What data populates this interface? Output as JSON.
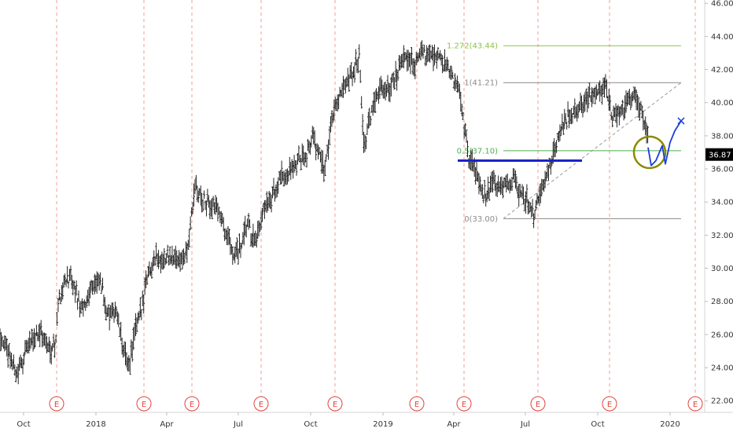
{
  "chart_data": {
    "type": "ohlc",
    "y_axis": {
      "ticks": [
        "22.00",
        "24.00",
        "26.00",
        "28.00",
        "30.00",
        "32.00",
        "34.00",
        "36.00",
        "38.00",
        "40.00",
        "42.00",
        "44.00",
        "46.00"
      ],
      "tick_values": [
        22,
        24,
        26,
        28,
        30,
        32,
        34,
        36,
        38,
        40,
        42,
        44,
        46
      ],
      "range": [
        21.3,
        46.2
      ],
      "position": "right"
    },
    "x_axis": {
      "ticks": [
        "Oct",
        "2018",
        "Apr",
        "Jul",
        "Oct",
        "2019",
        "Apr",
        "Jul",
        "Oct",
        "2020"
      ],
      "tick_days": [
        30,
        122,
        212,
        303,
        395,
        487,
        577,
        668,
        760,
        852
      ],
      "range_days": [
        0,
        932
      ]
    },
    "last_price": {
      "label": "36.87",
      "value": 36.87,
      "color": "#000000"
    },
    "earnings": {
      "label": "E",
      "days": [
        72,
        183,
        244,
        332,
        426,
        530,
        590,
        684,
        775,
        884
      ]
    },
    "fibonacci": [
      {
        "label": "1.272(43.44)",
        "value": 43.44,
        "color": "#8bc34a"
      },
      {
        "label": "1(41.21)",
        "value": 41.21,
        "color": "#8a8a8a"
      },
      {
        "label": "0.5(37.10)",
        "value": 37.1,
        "color": "#4caf50"
      },
      {
        "label": "0(33.00)",
        "value": 33.0,
        "color": "#8a8a8a"
      }
    ],
    "price_path": [
      [
        0,
        26.0
      ],
      [
        10,
        25.0
      ],
      [
        22,
        23.6
      ],
      [
        35,
        25.2
      ],
      [
        50,
        26.3
      ],
      [
        62,
        25.1
      ],
      [
        70,
        25.4
      ],
      [
        75,
        28.2
      ],
      [
        85,
        29.5
      ],
      [
        95,
        28.7
      ],
      [
        105,
        27.3
      ],
      [
        115,
        28.9
      ],
      [
        128,
        29.1
      ],
      [
        138,
        27.0
      ],
      [
        148,
        27.4
      ],
      [
        156,
        25.3
      ],
      [
        163,
        24.0
      ],
      [
        172,
        26.2
      ],
      [
        180,
        27.5
      ],
      [
        186,
        29.4
      ],
      [
        195,
        30.6
      ],
      [
        210,
        30.5
      ],
      [
        225,
        30.7
      ],
      [
        237,
        30.6
      ],
      [
        243,
        32.8
      ],
      [
        248,
        34.9
      ],
      [
        258,
        34.1
      ],
      [
        268,
        33.8
      ],
      [
        278,
        33.6
      ],
      [
        288,
        32.0
      ],
      [
        298,
        30.8
      ],
      [
        306,
        31.2
      ],
      [
        315,
        32.7
      ],
      [
        325,
        31.3
      ],
      [
        335,
        33.4
      ],
      [
        345,
        34.2
      ],
      [
        358,
        35.5
      ],
      [
        372,
        36.0
      ],
      [
        388,
        36.9
      ],
      [
        398,
        38.0
      ],
      [
        412,
        35.9
      ],
      [
        425,
        39.8
      ],
      [
        438,
        40.7
      ],
      [
        450,
        41.9
      ],
      [
        457,
        42.9
      ],
      [
        463,
        37.2
      ],
      [
        470,
        39.0
      ],
      [
        480,
        40.8
      ],
      [
        492,
        40.9
      ],
      [
        505,
        41.6
      ],
      [
        514,
        42.8
      ],
      [
        525,
        42.3
      ],
      [
        535,
        42.9
      ],
      [
        548,
        43.1
      ],
      [
        560,
        42.6
      ],
      [
        575,
        41.6
      ],
      [
        585,
        40.5
      ],
      [
        590,
        38.8
      ],
      [
        597,
        36.4
      ],
      [
        605,
        36.0
      ],
      [
        615,
        34.4
      ],
      [
        625,
        35.1
      ],
      [
        640,
        34.7
      ],
      [
        652,
        35.4
      ],
      [
        662,
        34.5
      ],
      [
        672,
        34.0
      ],
      [
        680,
        33.3
      ],
      [
        688,
        34.8
      ],
      [
        698,
        36.0
      ],
      [
        706,
        37.2
      ],
      [
        715,
        38.7
      ],
      [
        728,
        39.4
      ],
      [
        740,
        39.8
      ],
      [
        755,
        40.6
      ],
      [
        765,
        40.7
      ],
      [
        770,
        41.2
      ],
      [
        778,
        39.0
      ],
      [
        788,
        39.5
      ],
      [
        798,
        40.1
      ],
      [
        808,
        40.5
      ],
      [
        818,
        39.0
      ],
      [
        824,
        37.6
      ]
    ],
    "trendline": {
      "from": [
        640,
        33.0
      ],
      "to": [
        866,
        41.21
      ],
      "style": "dashed"
    },
    "support_line": {
      "from": [
        582,
        36.5
      ],
      "to": [
        740,
        36.5
      ],
      "color": "#1a23c9"
    },
    "projection": [
      [
        824,
        37.3
      ],
      [
        828,
        36.2
      ],
      [
        834,
        36.5
      ],
      [
        842,
        37.4
      ],
      [
        846,
        36.3
      ],
      [
        852,
        37.6
      ],
      [
        858,
        38.3
      ],
      [
        866,
        38.9
      ]
    ],
    "circle": {
      "center": [
        826,
        37.0
      ],
      "rx": 20,
      "ry_value": 0.95,
      "color": "#8a8a00"
    }
  }
}
